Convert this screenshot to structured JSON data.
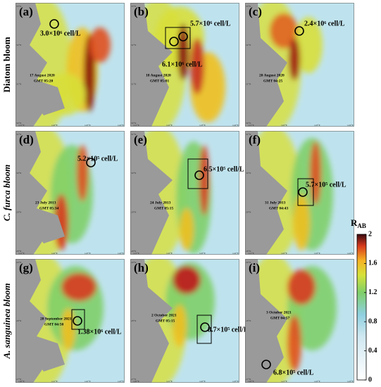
{
  "rows": [
    {
      "label": "Diatom bloom",
      "lat_labels": [
        "33°N",
        "32°N",
        "31°N",
        "30°N"
      ],
      "lon_labels": [
        "121°E",
        "122°E",
        "123°E",
        "124°E"
      ]
    },
    {
      "label": "C. furca bloom",
      "lat_labels": [
        "31°N",
        "30°N",
        "29°N",
        "28°N"
      ],
      "lon_labels": [
        "121°E",
        "122°E",
        "123°E",
        "124°E"
      ]
    },
    {
      "label": "A. sanguinea bloom",
      "lat_labels": [
        "29°N",
        "28°N",
        "27°N"
      ],
      "lon_labels": [
        "120°E",
        "121°E",
        "122°E",
        "123°E"
      ]
    }
  ],
  "panels": [
    {
      "tag": "(a)",
      "concentrations": [
        "3.0×10⁶ cell/L"
      ],
      "date": "17 August 2020",
      "time": "GMT 05:20"
    },
    {
      "tag": "(b)",
      "concentrations": [
        "5.7×10⁶ cell/L",
        "6.1×10⁶ cell/L"
      ],
      "date": "18 August 2020",
      "time": "GMT 05:01"
    },
    {
      "tag": "(c)",
      "concentrations": [
        "2.4×10⁶ cell/L"
      ],
      "date": "20 August 2020",
      "time": "GMT 04:25"
    },
    {
      "tag": "(d)",
      "concentrations": [
        "5.2×10⁵ cell/L"
      ],
      "date": "23 July 2013",
      "time": "GMT 05:34"
    },
    {
      "tag": "(e)",
      "concentrations": [
        "6.5×10⁵ cell/L"
      ],
      "date": "24 July 2013",
      "time": "GMT 05:15"
    },
    {
      "tag": "(f)",
      "concentrations": [
        "5.7×10⁵ cell/L"
      ],
      "date": "31 July 2013",
      "time": "GMT 04:43"
    },
    {
      "tag": "(g)",
      "concentrations": [
        "1.38×10⁶ cell/L"
      ],
      "date": "28 September 2021",
      "time": "GMT 04:50"
    },
    {
      "tag": "(h)",
      "concentrations": [
        "8.7×10⁵ cell/L"
      ],
      "date": "2 October 2021",
      "time": "GMT 05:15"
    },
    {
      "tag": "(i)",
      "concentrations": [
        "6.8×10⁵ cell/L"
      ],
      "date": "3 October 2021",
      "time": "GMT 04:57"
    }
  ],
  "colorbar": {
    "title": "R",
    "title_sub": "AB",
    "lim": [
      0,
      2
    ],
    "ticks": [
      0,
      0.4,
      0.8,
      1.2,
      1.6,
      2
    ]
  }
}
